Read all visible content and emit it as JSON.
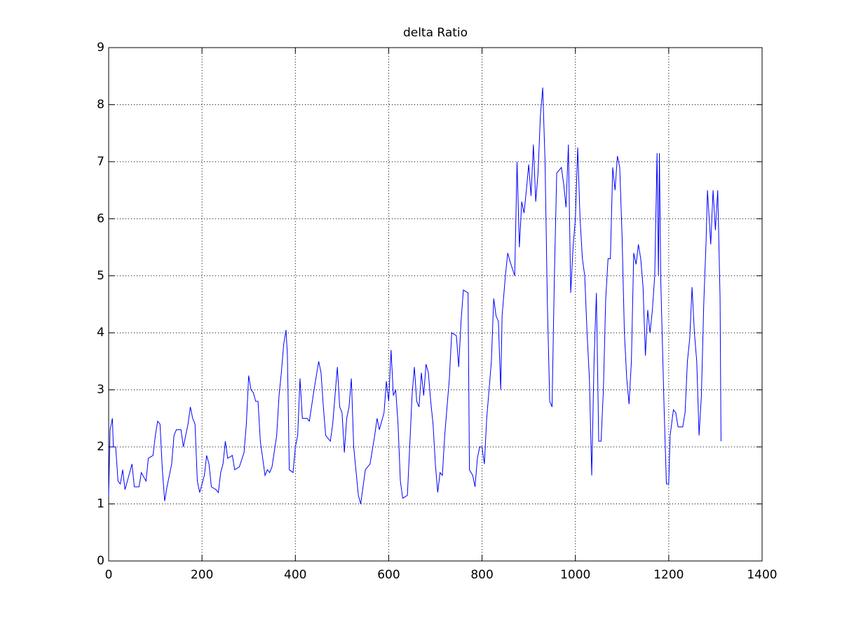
{
  "chart_data": {
    "type": "line",
    "title": "delta Ratio",
    "x": [
      0,
      3,
      8,
      10,
      15,
      20,
      25,
      30,
      35,
      45,
      50,
      55,
      65,
      70,
      80,
      85,
      95,
      100,
      105,
      110,
      115,
      120,
      125,
      130,
      135,
      140,
      145,
      155,
      160,
      165,
      170,
      175,
      180,
      185,
      190,
      195,
      200,
      205,
      210,
      215,
      220,
      230,
      235,
      240,
      245,
      250,
      255,
      265,
      270,
      280,
      290,
      295,
      300,
      305,
      310,
      315,
      320,
      325,
      335,
      340,
      345,
      350,
      360,
      365,
      370,
      375,
      380,
      383,
      387,
      395,
      400,
      405,
      410,
      415,
      425,
      430,
      440,
      450,
      455,
      460,
      465,
      475,
      480,
      490,
      495,
      500,
      505,
      510,
      515,
      520,
      525,
      535,
      540,
      545,
      550,
      560,
      570,
      575,
      580,
      590,
      595,
      600,
      605,
      610,
      615,
      620,
      625,
      630,
      640,
      645,
      650,
      655,
      660,
      665,
      670,
      675,
      680,
      685,
      690,
      695,
      700,
      705,
      710,
      715,
      720,
      730,
      735,
      745,
      750,
      755,
      760,
      770,
      773,
      780,
      785,
      790,
      795,
      800,
      805,
      810,
      820,
      825,
      830,
      835,
      840,
      843,
      850,
      855,
      860,
      870,
      875,
      880,
      885,
      890,
      895,
      900,
      905,
      910,
      915,
      920,
      925,
      930,
      935,
      940,
      945,
      950,
      955,
      960,
      970,
      975,
      980,
      985,
      990,
      995,
      1000,
      1005,
      1010,
      1015,
      1020,
      1025,
      1030,
      1035,
      1040,
      1045,
      1050,
      1055,
      1060,
      1065,
      1070,
      1075,
      1080,
      1085,
      1090,
      1095,
      1100,
      1105,
      1110,
      1115,
      1120,
      1125,
      1130,
      1135,
      1140,
      1145,
      1150,
      1155,
      1160,
      1165,
      1170,
      1175,
      1178,
      1180,
      1183,
      1190,
      1195,
      1200,
      1203,
      1210,
      1215,
      1220,
      1230,
      1235,
      1240,
      1245,
      1250,
      1255,
      1260,
      1265,
      1270,
      1275,
      1280,
      1283,
      1290,
      1295,
      1300,
      1305,
      1310,
      1312
    ],
    "series": [
      {
        "color": "#0000ff",
        "values": [
          1.15,
          2.3,
          2.5,
          2.0,
          2.0,
          1.4,
          1.35,
          1.6,
          1.25,
          1.55,
          1.7,
          1.3,
          1.3,
          1.55,
          1.4,
          1.8,
          1.85,
          2.2,
          2.45,
          2.4,
          1.6,
          1.05,
          1.3,
          1.5,
          1.7,
          2.2,
          2.3,
          2.3,
          2.0,
          2.2,
          2.4,
          2.7,
          2.5,
          2.4,
          1.4,
          1.2,
          1.35,
          1.5,
          1.85,
          1.7,
          1.3,
          1.25,
          1.2,
          1.55,
          1.7,
          2.1,
          1.8,
          1.85,
          1.6,
          1.65,
          1.9,
          2.4,
          3.25,
          3.0,
          2.95,
          2.8,
          2.8,
          2.1,
          1.5,
          1.6,
          1.55,
          1.65,
          2.2,
          2.9,
          3.3,
          3.8,
          4.05,
          3.6,
          1.6,
          1.55,
          2.0,
          2.2,
          3.2,
          2.5,
          2.5,
          2.45,
          3.0,
          3.5,
          3.3,
          2.7,
          2.2,
          2.1,
          2.4,
          3.4,
          2.7,
          2.6,
          1.9,
          2.5,
          2.7,
          3.2,
          2.0,
          1.15,
          1.0,
          1.3,
          1.6,
          1.7,
          2.2,
          2.5,
          2.3,
          2.6,
          3.15,
          2.8,
          3.7,
          2.9,
          3.0,
          2.4,
          1.4,
          1.1,
          1.15,
          2.0,
          2.9,
          3.4,
          2.8,
          2.7,
          3.3,
          2.9,
          3.45,
          3.3,
          2.8,
          2.4,
          1.7,
          1.2,
          1.55,
          1.5,
          2.2,
          3.2,
          4.0,
          3.95,
          3.4,
          4.2,
          4.75,
          4.7,
          1.6,
          1.5,
          1.3,
          1.8,
          2.0,
          2.0,
          1.7,
          2.5,
          3.5,
          4.6,
          4.3,
          4.2,
          3.0,
          4.3,
          5.0,
          5.4,
          5.25,
          5.0,
          7.0,
          5.5,
          6.3,
          6.1,
          6.5,
          6.95,
          6.4,
          7.3,
          6.3,
          6.8,
          7.8,
          8.3,
          7.0,
          4.5,
          2.8,
          2.7,
          5.0,
          6.8,
          6.9,
          6.6,
          6.2,
          7.3,
          4.7,
          5.5,
          6.0,
          7.25,
          6.0,
          5.3,
          5.0,
          4.0,
          3.2,
          1.5,
          3.5,
          4.7,
          2.1,
          2.1,
          3.0,
          4.6,
          5.3,
          5.3,
          6.9,
          6.5,
          7.1,
          6.9,
          5.7,
          4.0,
          3.2,
          2.75,
          3.5,
          5.4,
          5.2,
          5.55,
          5.3,
          4.8,
          3.6,
          4.4,
          4.0,
          4.4,
          5.0,
          7.15,
          5.0,
          7.15,
          4.9,
          2.7,
          1.35,
          1.35,
          2.2,
          2.65,
          2.6,
          2.35,
          2.35,
          2.6,
          3.5,
          3.9,
          4.8,
          4.0,
          3.5,
          2.2,
          2.9,
          4.5,
          5.6,
          6.5,
          5.55,
          6.5,
          5.8,
          6.5,
          4.6,
          2.1
        ]
      }
    ],
    "xlim": [
      0,
      1400
    ],
    "xticks": [
      0,
      200,
      400,
      600,
      800,
      1000,
      1200,
      1400
    ],
    "ylim": [
      0,
      9
    ],
    "yticks": [
      0,
      1,
      2,
      3,
      4,
      5,
      6,
      7,
      8,
      9
    ],
    "grid": true
  }
}
